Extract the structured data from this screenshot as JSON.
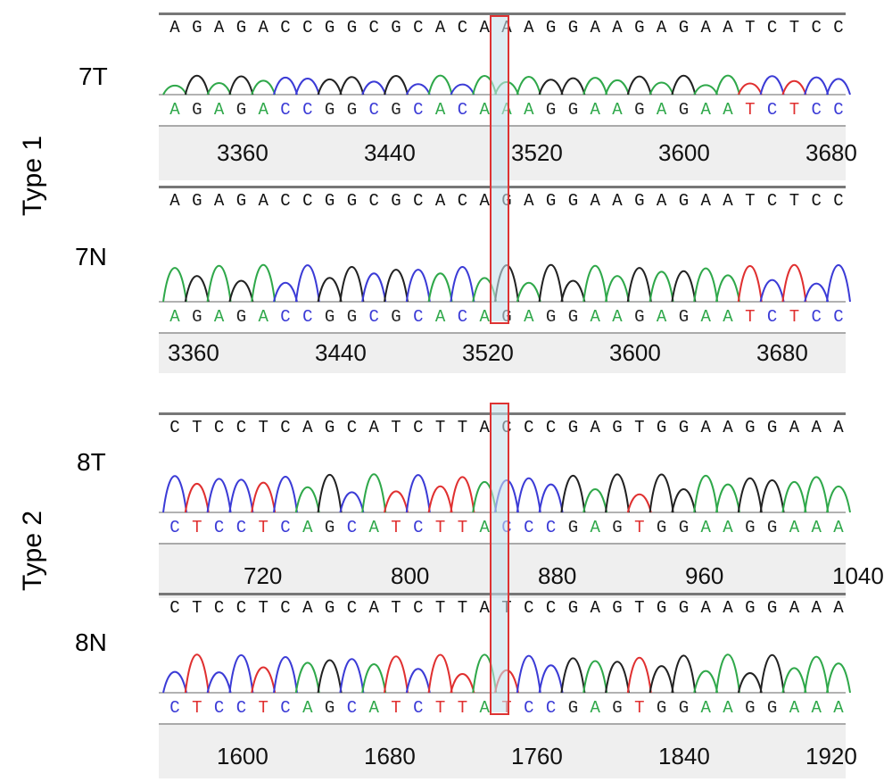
{
  "groups": [
    {
      "label": "Type 1",
      "samples": [
        {
          "label": "7T",
          "called": "AGAGACCGGCGCACAAAGGAAGAGAATCTCC",
          "base": "AGAGACCGGCGCACAAAGGAAGAGAATCTCC",
          "ticks": [
            "3360",
            "3440",
            "3520",
            "3600",
            "3680"
          ]
        },
        {
          "label": "7N",
          "called": "AGAGACCGGCGCACAGAGGAAGAGAATCTCC",
          "base": "AGAGACCGGCGCACAGAGGAAGAGAATCTCC",
          "ticks": [
            "3360",
            "3440",
            "3520",
            "3600",
            "3680"
          ]
        }
      ]
    },
    {
      "label": "Type 2",
      "samples": [
        {
          "label": "8T",
          "called": "CTCCTCAGCATCTTACCCGAGTGGAAGGAAA",
          "base": "CTCCTCAGCATCTTACCCGAGTGGAAGGAAA",
          "ticks": [
            "720",
            "800",
            "880",
            "960",
            "1040"
          ]
        },
        {
          "label": "8N",
          "called": "CTCCTCAGCATCTTATCCGAGTGGAAGGAAA",
          "base": "CTCCTCAGCATCTTATCCGAGTGGAAGGAAA",
          "ticks": [
            "1600",
            "1680",
            "1760",
            "1840",
            "1920"
          ]
        }
      ]
    }
  ],
  "base_colors": {
    "A": "#2fa84a",
    "C": "#3b3bd6",
    "G": "#222222",
    "T": "#e03030"
  },
  "highlight_color": "#d33333"
}
